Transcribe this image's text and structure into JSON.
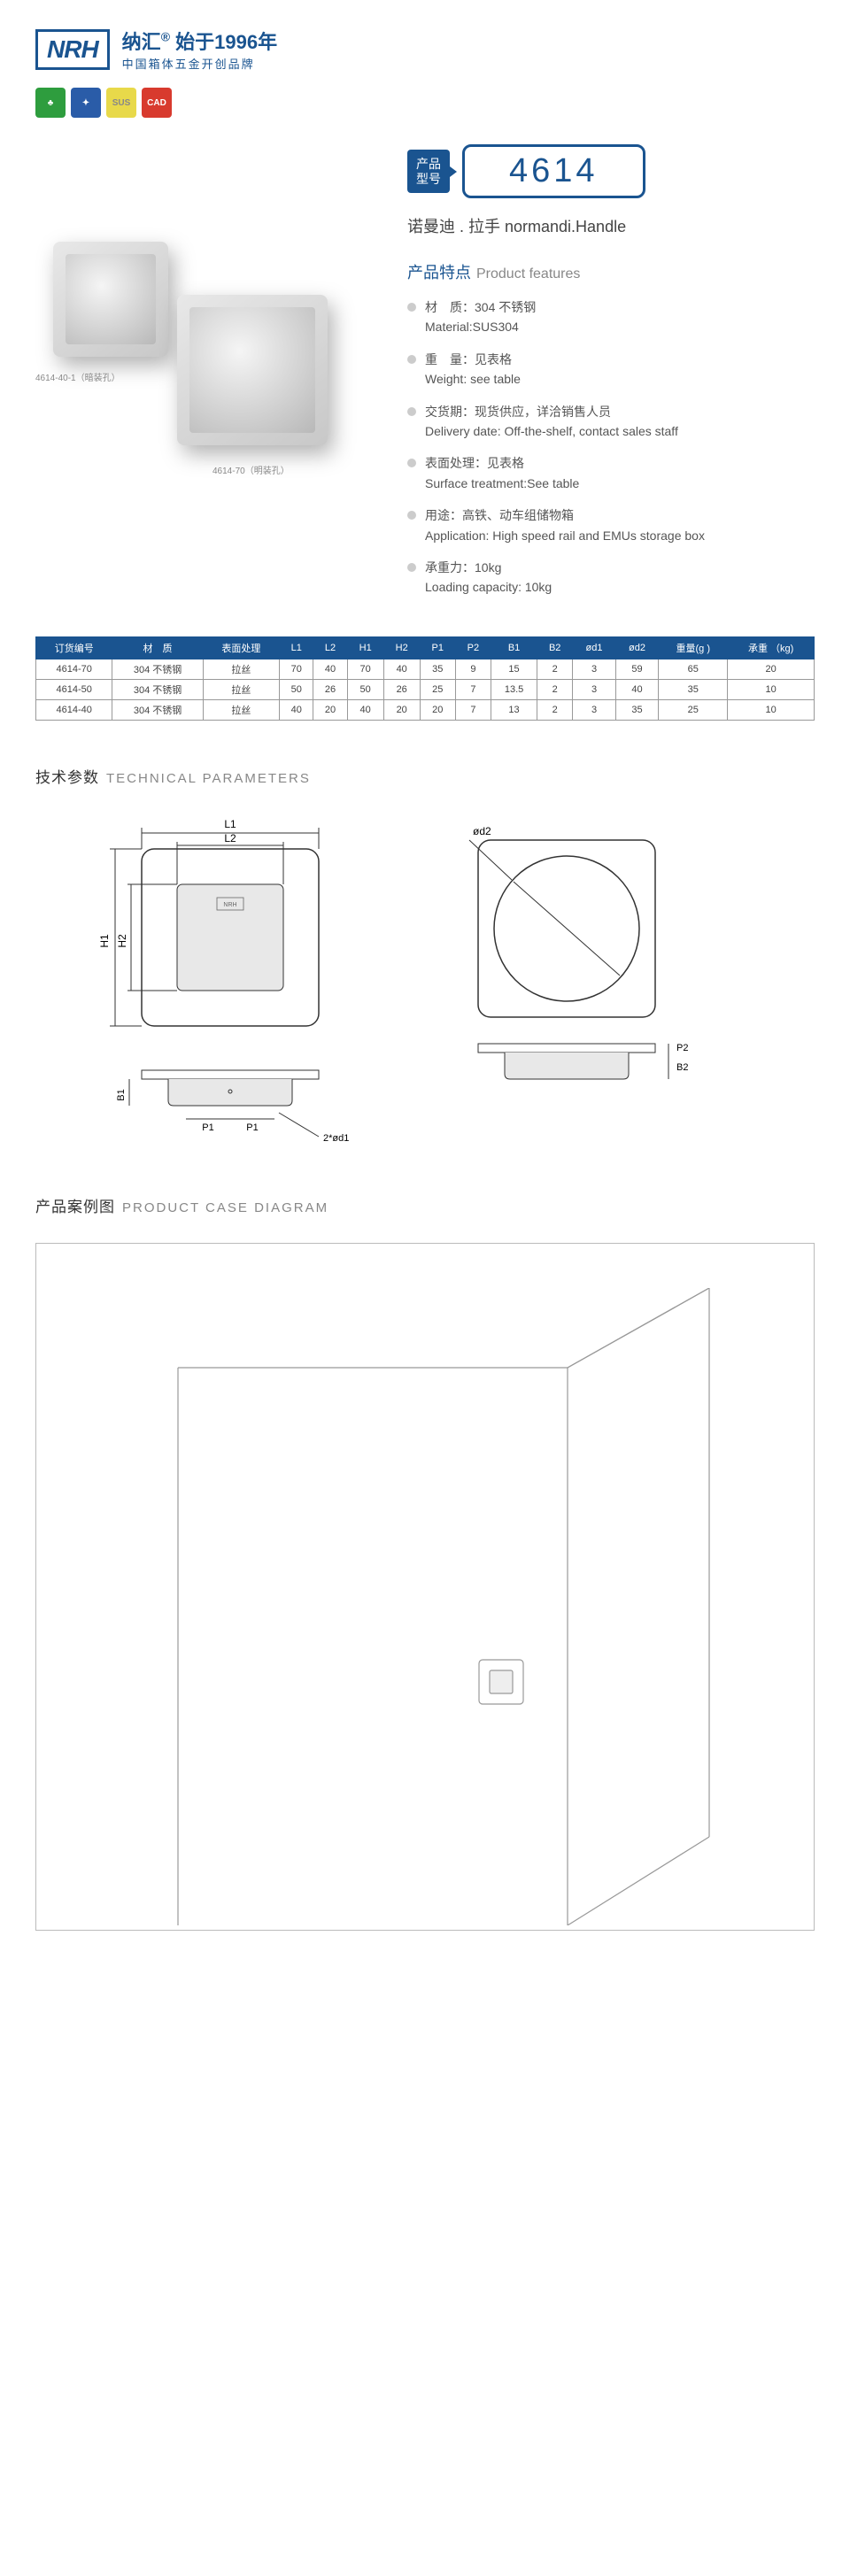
{
  "brand": {
    "logo": "NRH",
    "cn": "纳汇",
    "reg": "®",
    "since": "始于1996年",
    "tagline": "中国箱体五金开创品牌"
  },
  "badges": [
    {
      "cls": "ic-green",
      "txt": "♣"
    },
    {
      "cls": "ic-blue",
      "txt": "✦"
    },
    {
      "cls": "ic-yellow",
      "txt": "SUS"
    },
    {
      "cls": "ic-red",
      "txt": "CAD"
    }
  ],
  "product_img": {
    "label1": "4614-40-1（暗装孔）",
    "label2": "4614-70（明装孔）"
  },
  "model": {
    "tag_cn1": "产品",
    "tag_cn2": "型号",
    "number": "4614"
  },
  "subtitle": "诺曼迪 . 拉手  normandi.Handle",
  "features_title": {
    "cn": "产品特点",
    "en": "Product features"
  },
  "features": [
    {
      "cn": "材　质：304 不锈钢",
      "en": "Material:SUS304"
    },
    {
      "cn": "重　量：见表格",
      "en": "Weight: see table"
    },
    {
      "cn": "交货期：现货供应，详洽销售人员",
      "en": "Delivery date: Off-the-shelf, contact sales staff"
    },
    {
      "cn": "表面处理：见表格",
      "en": "Surface treatment:See table"
    },
    {
      "cn": "用途：高铁、动车组储物箱",
      "en": "Application: High speed rail and EMUs storage box"
    },
    {
      "cn": "承重力：10kg",
      "en": "Loading capacity: 10kg"
    }
  ],
  "spec_table": {
    "headers": [
      "订货编号",
      "材　质",
      "表面处理",
      "L1",
      "L2",
      "H1",
      "H2",
      "P1",
      "P2",
      "B1",
      "B2",
      "ød1",
      "ød2",
      "重量(g )",
      "承重 （kg)"
    ],
    "rows": [
      [
        "4614-70",
        "304 不锈钢",
        "拉丝",
        "70",
        "40",
        "70",
        "40",
        "35",
        "9",
        "15",
        "2",
        "3",
        "59",
        "65",
        "20"
      ],
      [
        "4614-50",
        "304 不锈钢",
        "拉丝",
        "50",
        "26",
        "50",
        "26",
        "25",
        "7",
        "13.5",
        "2",
        "3",
        "40",
        "35",
        "10"
      ],
      [
        "4614-40",
        "304 不锈钢",
        "拉丝",
        "40",
        "20",
        "40",
        "20",
        "20",
        "7",
        "13",
        "2",
        "3",
        "35",
        "25",
        "10"
      ]
    ]
  },
  "tech_title": {
    "cn": "技术参数",
    "en": "TECHNICAL PARAMETERS"
  },
  "case_title": {
    "cn": "产品案例图",
    "en": "PRODUCT CASE DIAGRAM"
  },
  "colors": {
    "brand": "#1a5490",
    "grey": "#888888",
    "border": "#bbbbbb"
  }
}
